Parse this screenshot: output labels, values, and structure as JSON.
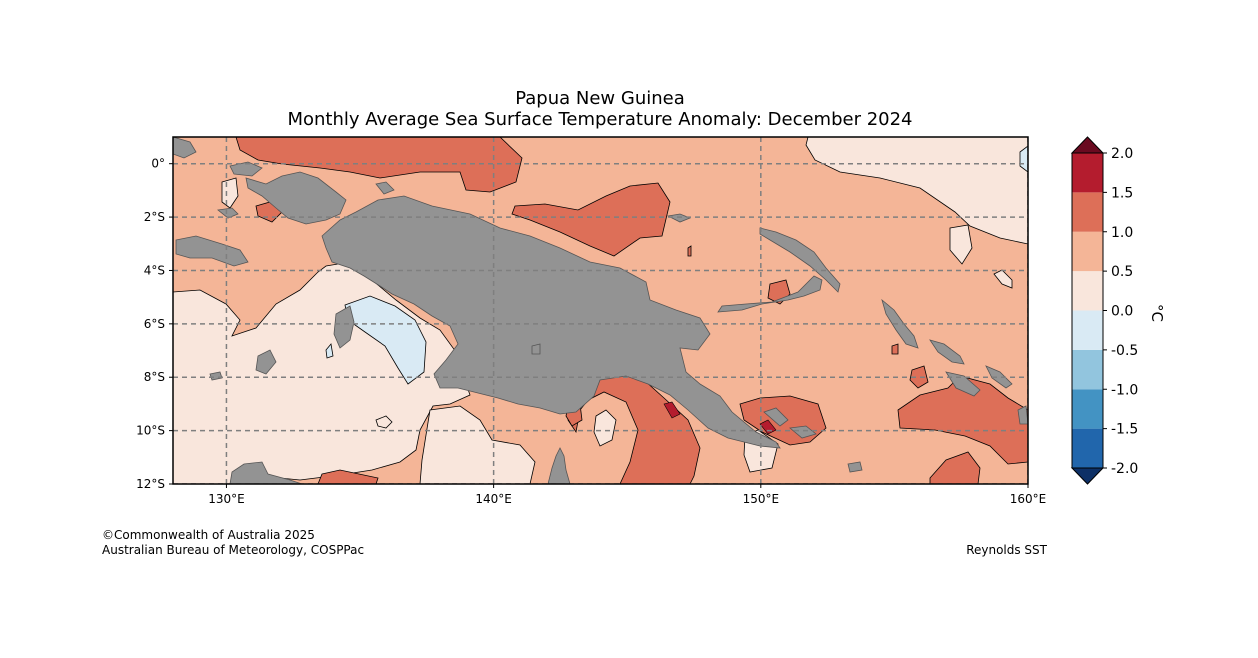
{
  "title_line1": "Papua New Guinea",
  "title_line2": "Monthly Average Sea Surface Temperature Anomaly: December 2024",
  "map": {
    "lon_range": [
      128,
      160
    ],
    "lat_range": [
      -12,
      1
    ],
    "lon_ticks": [
      {
        "value": 130,
        "label": "130°E"
      },
      {
        "value": 140,
        "label": "140°E"
      },
      {
        "value": 150,
        "label": "150°E"
      },
      {
        "value": 160,
        "label": "160°E"
      }
    ],
    "lat_ticks": [
      {
        "value": 0,
        "label": "0°"
      },
      {
        "value": -2,
        "label": "2°S"
      },
      {
        "value": -4,
        "label": "4°S"
      },
      {
        "value": -6,
        "label": "6°S"
      },
      {
        "value": -8,
        "label": "8°S"
      },
      {
        "value": -10,
        "label": "10°S"
      },
      {
        "value": -12,
        "label": "12°S"
      }
    ],
    "colors": {
      "land": "#939393",
      "land_edge": "#555555",
      "grid": "#7f7f7f"
    }
  },
  "colorbar": {
    "unit": "°C",
    "bins": [
      {
        "from": -2.0,
        "to": -1.5,
        "color": "#2166ac"
      },
      {
        "from": -1.5,
        "to": -1.0,
        "color": "#4393c3"
      },
      {
        "from": -1.0,
        "to": -0.5,
        "color": "#92c5de"
      },
      {
        "from": -0.5,
        "to": 0.0,
        "color": "#d9eaf4"
      },
      {
        "from": 0.0,
        "to": 0.5,
        "color": "#f9e6dc"
      },
      {
        "from": 0.5,
        "to": 1.0,
        "color": "#f4b597"
      },
      {
        "from": 1.0,
        "to": 1.5,
        "color": "#dd6f58"
      },
      {
        "from": 1.5,
        "to": 2.0,
        "color": "#b41c2e"
      }
    ],
    "under_color": "#0d3066",
    "over_color": "#6a0a20",
    "tick_labels": [
      "-2.0",
      "-1.5",
      "-1.0",
      "-0.5",
      "0.0",
      "0.5",
      "1.0",
      "1.5",
      "2.0"
    ]
  },
  "footer": {
    "copyright": "©Commonwealth of Australia 2025",
    "agency": "Australian Bureau of Meteorology, COSPPac",
    "dataset": "Reynolds SST"
  }
}
